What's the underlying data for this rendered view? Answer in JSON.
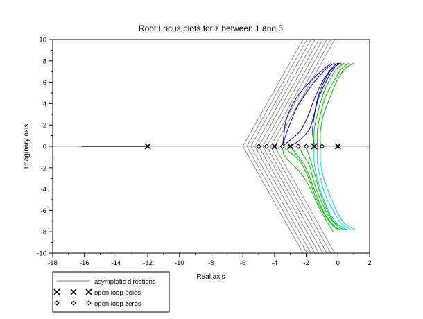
{
  "chart_data": {
    "type": "line",
    "title": "Root Locus plots for z between 1 and 5",
    "xlabel": "Real axis",
    "ylabel": "Imaginary axis",
    "xlim": [
      -18,
      2
    ],
    "ylim": [
      -10,
      10
    ],
    "xticks": [
      -18,
      -16,
      -14,
      -12,
      -10,
      -8,
      -6,
      -4,
      -2,
      0,
      2
    ],
    "yticks": [
      -10,
      -8,
      -6,
      -4,
      -2,
      0,
      2,
      4,
      6,
      8,
      10
    ],
    "grid": false,
    "colors": {
      "axes": "#000000",
      "asymptote": "#7f7f7f",
      "blue": "#0000b4",
      "green": "#00c400",
      "cyan": "#00d8e8",
      "real_axis_locus": "#000000"
    },
    "legend": {
      "placement": "bottom-left",
      "entries": [
        {
          "label": "asymptotic directions",
          "marker": "line"
        },
        {
          "label": "open loop poles",
          "marker": "x"
        },
        {
          "label": "open loop zeros",
          "marker": "diamond"
        }
      ]
    },
    "open_loop_poles": [
      [
        -12,
        0
      ],
      [
        -4,
        0
      ],
      [
        -3,
        0
      ],
      [
        -1.5,
        0
      ],
      [
        0,
        0
      ]
    ],
    "open_loop_zeros": [
      [
        -5,
        0
      ],
      [
        -4.5,
        0
      ],
      [
        -3.5,
        0
      ],
      [
        -2.5,
        0
      ],
      [
        -2,
        0
      ],
      [
        -1,
        0
      ]
    ],
    "real_axis_locus": {
      "x": [
        -16.2,
        -12
      ],
      "y": [
        0,
        0
      ]
    },
    "asymptote_centroids": [
      -6,
      -5.75,
      -5.5,
      -5.25,
      -5,
      -4.75,
      -4.5,
      -4.25,
      -4
    ],
    "asymptote_ends": [
      [
        -2.2,
        10
      ],
      [
        -2.2,
        -10
      ]
    ],
    "series": [
      {
        "color": "blue",
        "branch": "upper",
        "points": [
          [
            -3.5,
            0
          ],
          [
            -3.4,
            1.2
          ],
          [
            -3.3,
            2.3
          ],
          [
            -3.0,
            3.5
          ],
          [
            -2.5,
            4.8
          ],
          [
            -1.8,
            6.0
          ],
          [
            -1.0,
            7.1
          ],
          [
            -0.4,
            7.8
          ]
        ]
      },
      {
        "color": "blue",
        "branch": "upper",
        "points": [
          [
            -3.5,
            0
          ],
          [
            -3.3,
            1.0
          ],
          [
            -3.0,
            2.2
          ],
          [
            -2.6,
            3.6
          ],
          [
            -2.0,
            5.0
          ],
          [
            -1.4,
            6.2
          ],
          [
            -0.7,
            7.3
          ],
          [
            -0.2,
            7.8
          ]
        ]
      },
      {
        "color": "blue",
        "branch": "upper",
        "points": [
          [
            -3.0,
            0
          ],
          [
            -2.4,
            0.6
          ],
          [
            -1.8,
            1.6
          ],
          [
            -1.5,
            3.0
          ],
          [
            -1.2,
            4.6
          ],
          [
            -0.7,
            6.2
          ],
          [
            -0.2,
            7.4
          ],
          [
            0.1,
            7.8
          ]
        ]
      },
      {
        "color": "blue",
        "branch": "upper",
        "points": [
          [
            -3.5,
            0
          ],
          [
            -3.0,
            0.6
          ],
          [
            -2.4,
            1.4
          ],
          [
            -1.9,
            2.8
          ],
          [
            -1.5,
            4.4
          ],
          [
            -1.0,
            6.0
          ],
          [
            -0.4,
            7.3
          ],
          [
            0.0,
            7.8
          ]
        ]
      },
      {
        "color": "blue",
        "branch": "upper",
        "points": [
          [
            -1.5,
            0
          ],
          [
            -1.6,
            1.4
          ],
          [
            -1.5,
            2.8
          ],
          [
            -1.3,
            4.4
          ],
          [
            -0.9,
            6.0
          ],
          [
            -0.4,
            7.2
          ],
          [
            0.2,
            7.8
          ]
        ]
      },
      {
        "color": "green",
        "branch": "upper",
        "points": [
          [
            -1.5,
            0
          ],
          [
            -1.5,
            1.5
          ],
          [
            -1.3,
            3.0
          ],
          [
            -1.0,
            4.6
          ],
          [
            -0.6,
            6.0
          ],
          [
            -0.1,
            7.2
          ],
          [
            0.4,
            7.8
          ]
        ]
      },
      {
        "color": "green",
        "branch": "upper",
        "points": [
          [
            -1.3,
            0
          ],
          [
            -1.3,
            1.5
          ],
          [
            -1.1,
            3.0
          ],
          [
            -0.8,
            4.6
          ],
          [
            -0.3,
            6.0
          ],
          [
            0.2,
            7.2
          ],
          [
            0.7,
            7.8
          ]
        ]
      },
      {
        "color": "green",
        "branch": "upper",
        "points": [
          [
            -1.1,
            0
          ],
          [
            -1.1,
            1.5
          ],
          [
            -0.9,
            3.0
          ],
          [
            -0.5,
            4.6
          ],
          [
            -0.1,
            6.0
          ],
          [
            0.4,
            7.2
          ],
          [
            1.0,
            7.8
          ]
        ]
      },
      {
        "color": "green",
        "branch": "lower",
        "points": [
          [
            -3.5,
            0
          ],
          [
            -3.4,
            -0.8
          ],
          [
            -3.0,
            -1.5
          ],
          [
            -2.3,
            -2.6
          ],
          [
            -1.8,
            -3.8
          ],
          [
            -1.3,
            -5.4
          ],
          [
            -0.8,
            -6.8
          ],
          [
            -0.3,
            -8.0
          ]
        ]
      },
      {
        "color": "green",
        "branch": "lower",
        "points": [
          [
            -3.5,
            0
          ],
          [
            -3.0,
            -0.6
          ],
          [
            -2.4,
            -1.4
          ],
          [
            -1.9,
            -2.8
          ],
          [
            -1.5,
            -4.4
          ],
          [
            -1.0,
            -6.0
          ],
          [
            -0.4,
            -7.3
          ],
          [
            0.0,
            -7.8
          ]
        ]
      },
      {
        "color": "green",
        "branch": "lower",
        "points": [
          [
            -3.0,
            0
          ],
          [
            -2.6,
            -0.8
          ],
          [
            -2.1,
            -1.8
          ],
          [
            -1.7,
            -3.2
          ],
          [
            -1.3,
            -4.8
          ],
          [
            -0.8,
            -6.4
          ],
          [
            -0.2,
            -7.5
          ],
          [
            0.2,
            -7.8
          ]
        ]
      },
      {
        "color": "green",
        "branch": "lower",
        "points": [
          [
            -2.5,
            0
          ],
          [
            -2.2,
            -0.8
          ],
          [
            -1.8,
            -1.8
          ],
          [
            -1.5,
            -3.4
          ],
          [
            -1.1,
            -5.0
          ],
          [
            -0.6,
            -6.5
          ],
          [
            0.0,
            -7.5
          ],
          [
            0.4,
            -7.8
          ]
        ]
      },
      {
        "color": "green",
        "branch": "lower",
        "points": [
          [
            -2.0,
            0
          ],
          [
            -1.8,
            -1.0
          ],
          [
            -1.5,
            -2.4
          ],
          [
            -1.2,
            -4.0
          ],
          [
            -0.8,
            -5.6
          ],
          [
            -0.3,
            -7.0
          ],
          [
            0.3,
            -7.6
          ],
          [
            0.6,
            -7.8
          ]
        ]
      },
      {
        "color": "cyan",
        "branch": "lower",
        "points": [
          [
            -1.5,
            0
          ],
          [
            -1.5,
            -1.5
          ],
          [
            -1.3,
            -3.0
          ],
          [
            -1.0,
            -4.6
          ],
          [
            -0.6,
            -6.0
          ],
          [
            -0.1,
            -7.2
          ],
          [
            0.5,
            -7.8
          ]
        ]
      },
      {
        "color": "cyan",
        "branch": "lower",
        "points": [
          [
            -1.3,
            0
          ],
          [
            -1.3,
            -1.5
          ],
          [
            -1.1,
            -3.0
          ],
          [
            -0.8,
            -4.6
          ],
          [
            -0.3,
            -6.0
          ],
          [
            0.2,
            -7.2
          ],
          [
            0.8,
            -7.8
          ]
        ]
      },
      {
        "color": "cyan",
        "branch": "lower",
        "points": [
          [
            -1.1,
            0
          ],
          [
            -1.1,
            -1.5
          ],
          [
            -0.9,
            -3.0
          ],
          [
            -0.5,
            -4.6
          ],
          [
            -0.1,
            -6.0
          ],
          [
            0.4,
            -7.2
          ],
          [
            1.1,
            -7.8
          ]
        ]
      }
    ]
  }
}
